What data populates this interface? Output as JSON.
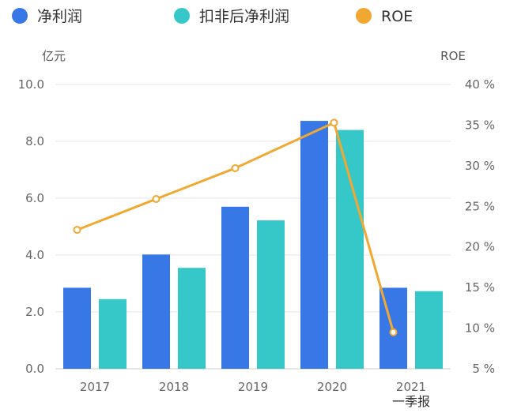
{
  "chart_data": {
    "type": "bar",
    "categories": [
      "2017",
      "2018",
      "2019",
      "2020",
      "2021"
    ],
    "category_sublabels": [
      "",
      "",
      "",
      "",
      "一季报"
    ],
    "series": [
      {
        "name": "净利润",
        "kind": "bar",
        "axis": "left",
        "color": "#3878e6",
        "values": [
          2.85,
          4.02,
          5.7,
          8.72,
          2.85
        ]
      },
      {
        "name": "扣非后净利润",
        "kind": "bar",
        "axis": "left",
        "color": "#36c8c8",
        "values": [
          2.45,
          3.55,
          5.22,
          8.4,
          2.73
        ]
      },
      {
        "name": "ROE",
        "kind": "line",
        "axis": "right",
        "color": "#f0a830",
        "values": [
          22.1,
          25.9,
          29.7,
          35.3,
          9.5
        ]
      }
    ],
    "ylabel": "亿元",
    "ylim": [
      0,
      10
    ],
    "yticks": [
      "0.0",
      "2.0",
      "4.0",
      "6.0",
      "8.0",
      "10.0"
    ],
    "y2label": "ROE",
    "y2lim": [
      5,
      40
    ],
    "y2ticks": [
      "5 %",
      "10 %",
      "15 %",
      "20 %",
      "25 %",
      "30 %",
      "35 %",
      "40 %"
    ],
    "grid": true,
    "legend_position": "top-left"
  }
}
